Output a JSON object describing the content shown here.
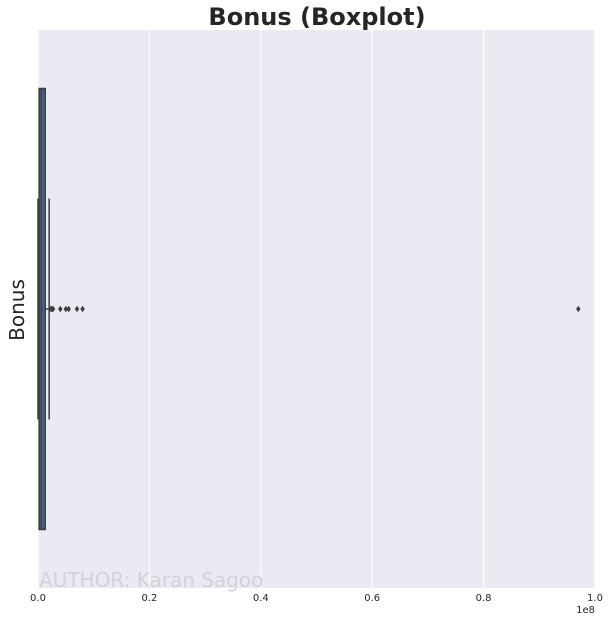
{
  "chart_data": {
    "type": "boxplot",
    "title": "Bonus (Boxplot)",
    "ylabel": "Bonus",
    "xlabel": "",
    "x_scale_label": "1e8",
    "xlim": [
      0,
      1.0
    ],
    "x_ticks": [
      0.0,
      0.2,
      0.4,
      0.6,
      0.8,
      1.0
    ],
    "x_tick_labels": [
      "0.0",
      "0.2",
      "0.4",
      "0.6",
      "0.8",
      "1.0"
    ],
    "grid": true,
    "background_color": "#eaeaf2",
    "box_color": "#4c5f94",
    "edge_color": "#3f3f3f",
    "box": {
      "q1": 0.002,
      "median": 0.006,
      "q3": 0.013,
      "whisker_low": 0.0,
      "whisker_high": 0.02
    },
    "outliers": [
      0.023,
      0.025,
      0.027,
      0.04,
      0.05,
      0.055,
      0.07,
      0.08,
      0.97
    ],
    "watermark": "AUTHOR: Karan Sagoo"
  }
}
